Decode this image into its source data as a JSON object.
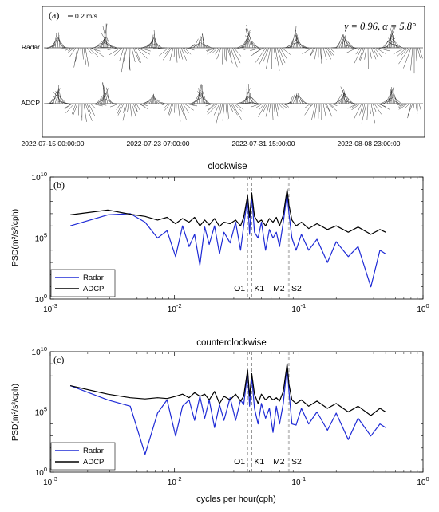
{
  "panel_a": {
    "label": "(a)",
    "scale_label": "0.2 m/s",
    "stats_text": "γ = 0.96, α = 5.8°",
    "rows": [
      "Radar",
      "ADCP"
    ],
    "date_ticks": [
      "2022-07-15 00:00:00",
      "2022-07-23 07:00:00",
      "2022-07-31 15:00:00",
      "2022-08-08 23:00:00"
    ]
  },
  "spectra_common": {
    "ylabel": "PSD(m²/s²/cph)",
    "xlabel": "cycles per hour(cph)",
    "x_ticks": [
      {
        "base": "10",
        "exp": "-3"
      },
      {
        "base": "10",
        "exp": "-2"
      },
      {
        "base": "10",
        "exp": "-1"
      },
      {
        "base": "10",
        "exp": "0"
      }
    ],
    "y_ticks": [
      {
        "base": "10",
        "exp": "0"
      },
      {
        "base": "10",
        "exp": "5"
      },
      {
        "base": "10",
        "exp": "10"
      }
    ],
    "tidal_lines": [
      {
        "name": "O1",
        "freq": 0.0387
      },
      {
        "name": "K1",
        "freq": 0.0418
      },
      {
        "name": "M2",
        "freq": 0.0805
      },
      {
        "name": "S2",
        "freq": 0.0833
      }
    ],
    "legend": [
      "Radar",
      "ADCP"
    ],
    "colors": {
      "radar": "#1f2bd6",
      "adcp": "#000000"
    }
  },
  "chart_data": [
    {
      "type": "line",
      "panel": "(b)",
      "title": "clockwise",
      "xlabel": "",
      "ylabel": "PSD(m²/s²/cph)",
      "xscale": "log",
      "yscale": "log",
      "xlim": [
        0.001,
        1
      ],
      "ylim": [
        1,
        10000000000.0
      ],
      "grid": false,
      "legend_position": "bottom-left",
      "series": [
        {
          "name": "ADCP",
          "x": [
            0.00145,
            0.0029,
            0.0044,
            0.0058,
            0.0073,
            0.0087,
            0.0102,
            0.0116,
            0.0131,
            0.0145,
            0.016,
            0.0175,
            0.019,
            0.021,
            0.023,
            0.025,
            0.028,
            0.031,
            0.034,
            0.036,
            0.0387,
            0.0402,
            0.0418,
            0.044,
            0.047,
            0.05,
            0.054,
            0.058,
            0.062,
            0.066,
            0.07,
            0.075,
            0.0805,
            0.0833,
            0.088,
            0.095,
            0.105,
            0.12,
            0.14,
            0.17,
            0.2,
            0.25,
            0.3,
            0.38,
            0.45,
            0.5
          ],
          "y": [
            8000000.0,
            20000000.0,
            9000000.0,
            6000000.0,
            3000000.0,
            5000000.0,
            1500000.0,
            4000000.0,
            2000000.0,
            5000000.0,
            1000000.0,
            3000000.0,
            1200000.0,
            4000000.0,
            900000.0,
            2000000.0,
            1500000.0,
            3000000.0,
            1000000.0,
            5000000.0,
            300000000.0,
            5000000.0,
            500000000.0,
            6000000.0,
            2000000.0,
            3000000.0,
            1000000.0,
            4000000.0,
            2000000.0,
            5000000.0,
            1000000.0,
            8000000.0,
            1000000000.0,
            50000000.0,
            3000000.0,
            1000000.0,
            2000000.0,
            600000.0,
            1500000.0,
            500000.0,
            1000000.0,
            300000.0,
            800000.0,
            200000.0,
            500000.0,
            300000.0
          ]
        },
        {
          "name": "Radar",
          "x": [
            0.00145,
            0.0029,
            0.0044,
            0.0058,
            0.0073,
            0.0087,
            0.0102,
            0.0116,
            0.0131,
            0.0145,
            0.016,
            0.0175,
            0.019,
            0.021,
            0.023,
            0.025,
            0.028,
            0.031,
            0.034,
            0.036,
            0.0387,
            0.0402,
            0.0418,
            0.044,
            0.047,
            0.05,
            0.054,
            0.058,
            0.062,
            0.066,
            0.07,
            0.075,
            0.0805,
            0.0833,
            0.088,
            0.095,
            0.105,
            0.12,
            0.14,
            0.17,
            0.2,
            0.25,
            0.3,
            0.38,
            0.45,
            0.5
          ],
          "y": [
            1000000.0,
            8000000.0,
            10000000.0,
            2000000.0,
            100000.0,
            400000.0,
            3000.0,
            1000000.0,
            20000.0,
            200000.0,
            600.0,
            800000.0,
            30000.0,
            1000000.0,
            5000.0,
            300000.0,
            40000.0,
            2000000.0,
            10000.0,
            1000000.0,
            200000000.0,
            200000.0,
            300000000.0,
            300000.0,
            100000.0,
            2000000.0,
            10000.0,
            500000.0,
            100000.0,
            300000.0,
            20000.0,
            2000000.0,
            500000000.0,
            10000000.0,
            100000.0,
            10000.0,
            200000.0,
            10000.0,
            80000.0,
            1000.0,
            50000.0,
            3000.0,
            20000.0,
            10,
            10000.0,
            5000.0
          ]
        }
      ]
    },
    {
      "type": "line",
      "panel": "(c)",
      "title": "counterclockwise",
      "xlabel": "cycles per hour(cph)",
      "ylabel": "PSD(m²/s²/cph)",
      "xscale": "log",
      "yscale": "log",
      "xlim": [
        0.001,
        1
      ],
      "ylim": [
        1,
        10000000000.0
      ],
      "grid": false,
      "legend_position": "bottom-left",
      "series": [
        {
          "name": "ADCP",
          "x": [
            0.00145,
            0.0029,
            0.0044,
            0.0058,
            0.0073,
            0.0087,
            0.0102,
            0.0116,
            0.0131,
            0.0145,
            0.016,
            0.0175,
            0.019,
            0.021,
            0.023,
            0.025,
            0.028,
            0.031,
            0.034,
            0.036,
            0.0387,
            0.0402,
            0.0418,
            0.044,
            0.047,
            0.05,
            0.054,
            0.058,
            0.062,
            0.066,
            0.07,
            0.075,
            0.0805,
            0.0833,
            0.088,
            0.095,
            0.105,
            0.12,
            0.14,
            0.17,
            0.2,
            0.25,
            0.3,
            0.38,
            0.45,
            0.5
          ],
          "y": [
            15000000.0,
            3000000.0,
            1500000.0,
            1200000.0,
            1500000.0,
            1300000.0,
            2000000.0,
            3000000.0,
            1500000.0,
            4000000.0,
            2000000.0,
            3000000.0,
            1000000.0,
            5000000.0,
            500000.0,
            2000000.0,
            1000000.0,
            3000000.0,
            800000.0,
            2000000.0,
            300000000.0,
            2000000.0,
            150000000.0,
            3000000.0,
            500000.0,
            3000000.0,
            1000000.0,
            2000000.0,
            1000000.0,
            1500000.0,
            800000.0,
            5000000.0,
            1000000000.0,
            20000000.0,
            1000000.0,
            500000.0,
            1000000.0,
            300000.0,
            800000.0,
            200000.0,
            500000.0,
            100000.0,
            300000.0,
            50000.0,
            200000.0,
            100000.0
          ]
        },
        {
          "name": "Radar",
          "x": [
            0.00145,
            0.0029,
            0.0044,
            0.0058,
            0.0073,
            0.0087,
            0.0102,
            0.0116,
            0.0131,
            0.0145,
            0.016,
            0.0175,
            0.019,
            0.021,
            0.023,
            0.025,
            0.028,
            0.031,
            0.034,
            0.036,
            0.0387,
            0.0402,
            0.0418,
            0.044,
            0.047,
            0.05,
            0.054,
            0.058,
            0.062,
            0.066,
            0.07,
            0.075,
            0.0805,
            0.0833,
            0.088,
            0.095,
            0.105,
            0.12,
            0.14,
            0.17,
            0.2,
            0.25,
            0.3,
            0.38,
            0.45,
            0.5
          ],
          "y": [
            15000000.0,
            1000000.0,
            300000.0,
            30,
            80000.0,
            1000000.0,
            1000.0,
            300000.0,
            1000000.0,
            20000.0,
            2000000.0,
            30000.0,
            1000000.0,
            5000.0,
            400000.0,
            20000.0,
            1500000.0,
            20000.0,
            1000000.0,
            400000.0,
            200000000.0,
            300000.0,
            80000000.0,
            200000.0,
            10000.0,
            500000.0,
            30000.0,
            200000.0,
            2000.0,
            300000.0,
            10000.0,
            500000.0,
            800000000.0,
            5000000.0,
            10000.0,
            8000.0,
            200000.0,
            10000.0,
            100000.0,
            3000.0,
            80000.0,
            500.0,
            30000.0,
            1000.0,
            10000.0,
            5000.0
          ]
        }
      ]
    }
  ]
}
